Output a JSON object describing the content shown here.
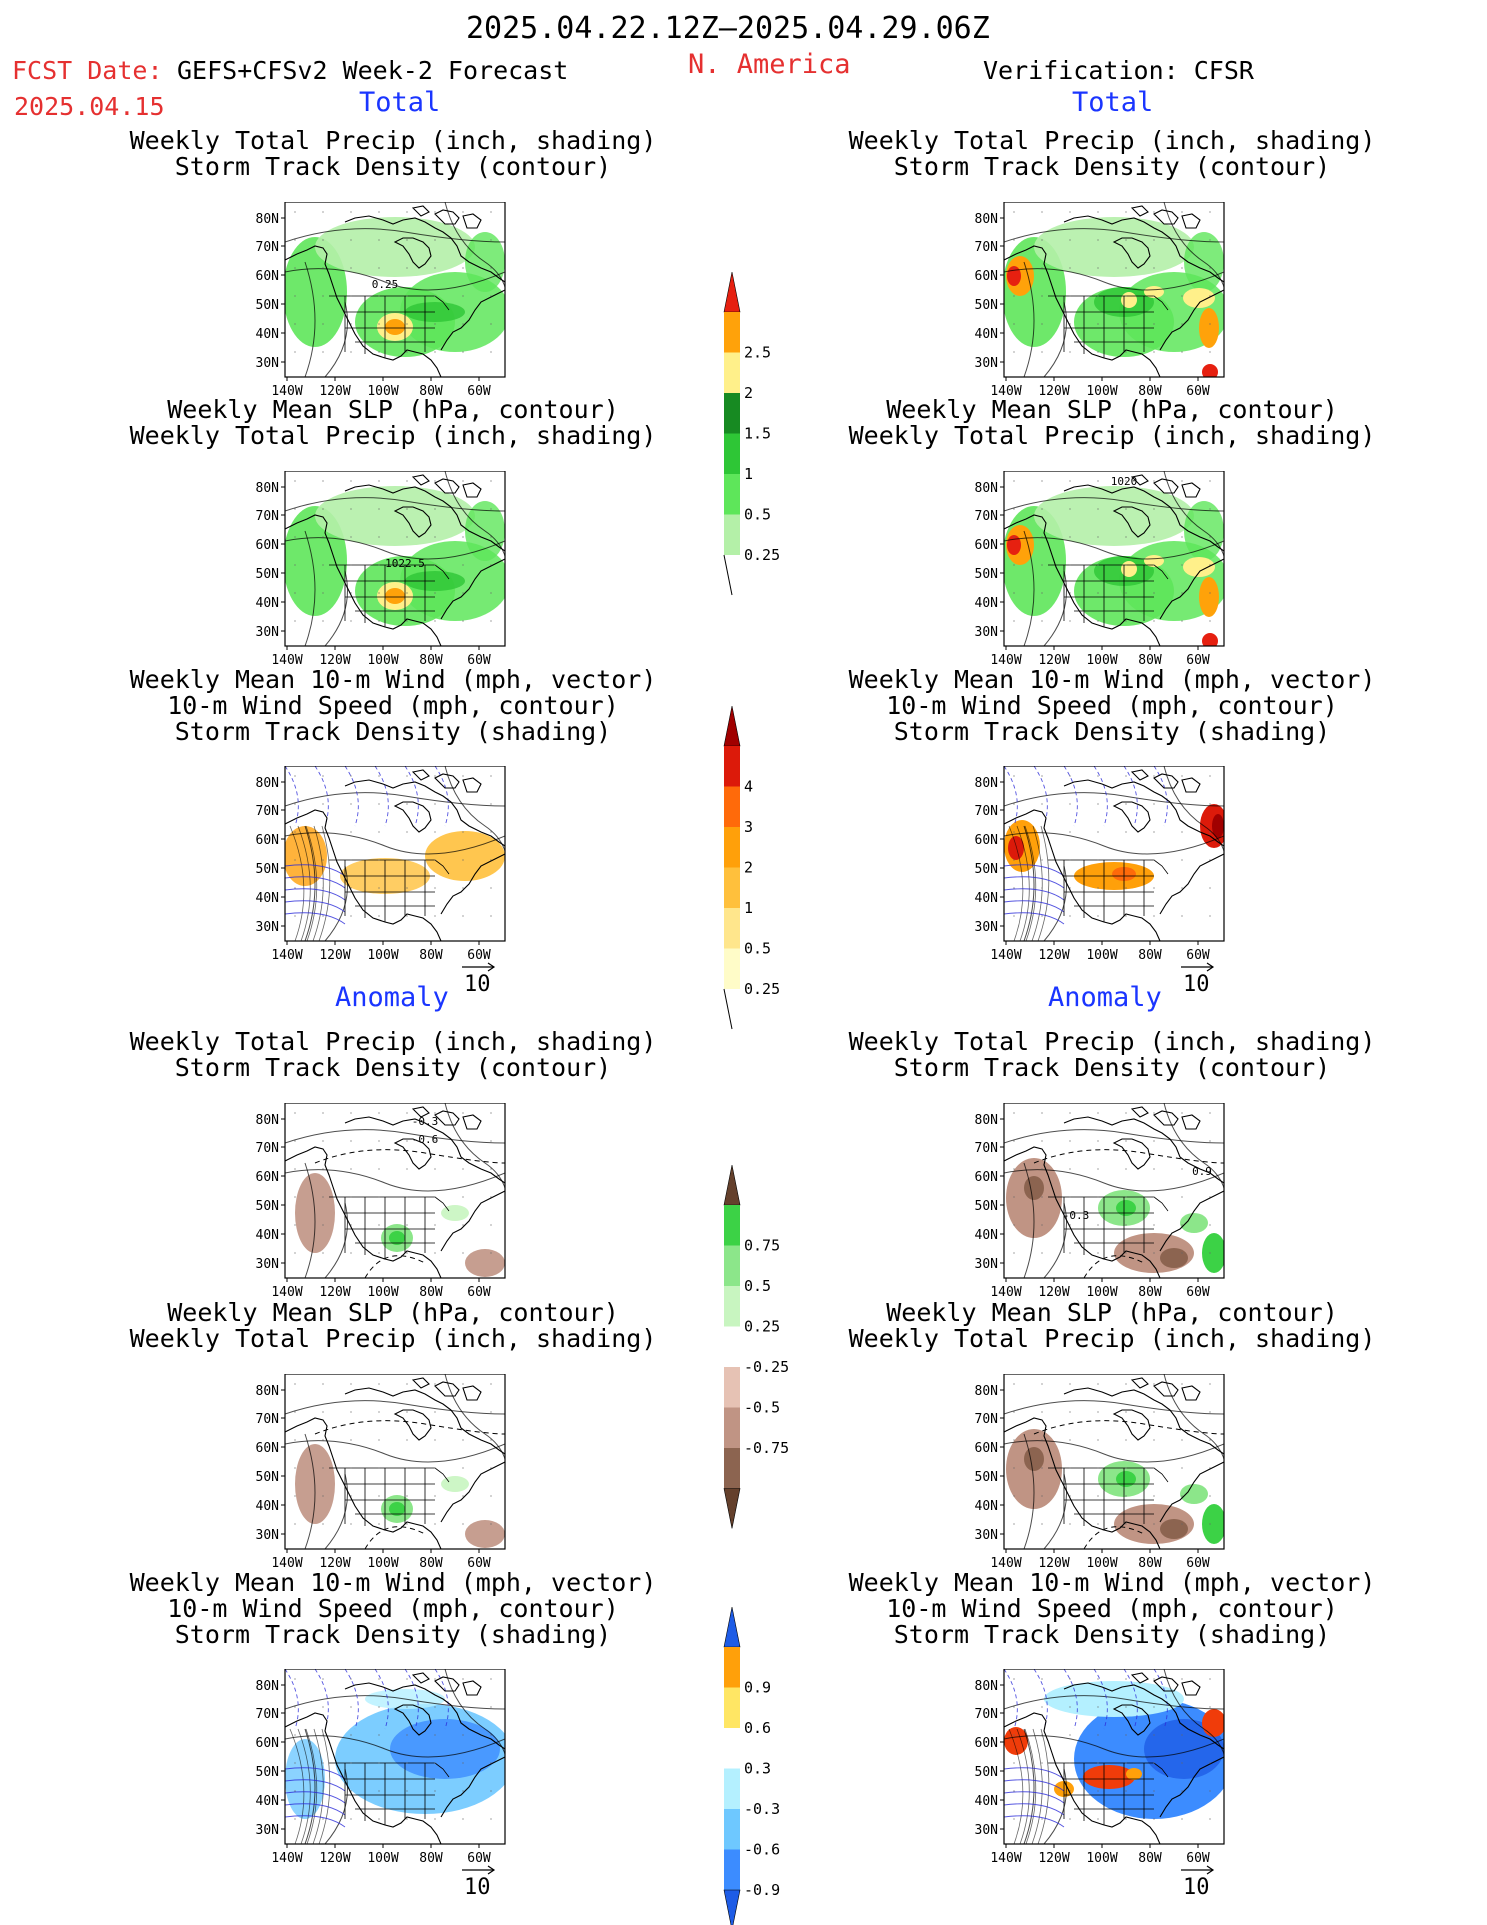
{
  "header": {
    "period": "2025.04.22.12Z–2025.04.29.06Z",
    "fcst_label": "FCST Date:",
    "fcst_date": "2025.04.15",
    "model": "GEFS+CFSv2 Week-2 Forecast",
    "region": "N. America",
    "verification": "Verification: CFSR"
  },
  "sections": {
    "total_label": "Total",
    "anomaly_label": "Anomaly"
  },
  "map_axes": {
    "lat_ticks": [
      "80N",
      "70N",
      "60N",
      "50N",
      "40N",
      "30N"
    ],
    "lon_ticks": [
      "140W",
      "120W",
      "100W",
      "80W",
      "60W"
    ]
  },
  "vector_reference": "10",
  "panel_titles": {
    "precip_storm": [
      "Weekly Total Precip (inch, shading)",
      "Storm Track Density (contour)"
    ],
    "slp_precip": [
      "Weekly Mean SLP (hPa, contour)",
      "Weekly Total Precip (inch, shading)"
    ],
    "wind_storm": [
      "Weekly Mean 10-m Wind (mph, vector)",
      "10-m Wind Speed (mph, contour)",
      "Storm Track Density (shading)"
    ]
  },
  "contour_labels": {
    "fcst_total_precip": "0.25",
    "fcst_total_slp": "1022.5",
    "cfsr_total_slp": "1020",
    "fcst_anom_precip_a": "-0.3",
    "fcst_anom_precip_b": "-0.6",
    "cfsr_anom_precip_a": "0.9",
    "cfsr_anom_precip_b": "-0.3"
  },
  "colorbars": {
    "precip_total": {
      "labels": [
        "0.25",
        "0.5",
        "1",
        "1.5",
        "2",
        "2.5"
      ],
      "colors": [
        "#b4f0a8",
        "#5ee65a",
        "#2ec636",
        "#178a22",
        "#fff08a",
        "#ffa20a",
        "#e62010"
      ]
    },
    "storm_total": {
      "labels": [
        "0.25",
        "0.5",
        "1",
        "2",
        "3",
        "4"
      ],
      "colors": [
        "#fffcc8",
        "#ffe68c",
        "#ffc03c",
        "#ffa00a",
        "#ff6a0a",
        "#dc1a0a",
        "#a00000"
      ]
    },
    "precip_anom": {
      "labels": [
        "0.75",
        "0.5",
        "0.25",
        "-0.25",
        "-0.5",
        "-0.75"
      ],
      "colors": [
        "#139b2a",
        "#3cd246",
        "#8ce68a",
        "#c8f5c0",
        "#ffffff",
        "#e6c2b4",
        "#c09484",
        "#8c6450",
        "#64402c"
      ]
    },
    "storm_anom": {
      "labels": [
        "0.9",
        "0.6",
        "0.3",
        "-0.3",
        "-0.6",
        "-0.9"
      ],
      "colors": [
        "#f03c0a",
        "#ffa00a",
        "#ffe664",
        "#ffffff",
        "#b4f0ff",
        "#6ec8ff",
        "#3c8cff",
        "#1e5ce6"
      ]
    }
  }
}
